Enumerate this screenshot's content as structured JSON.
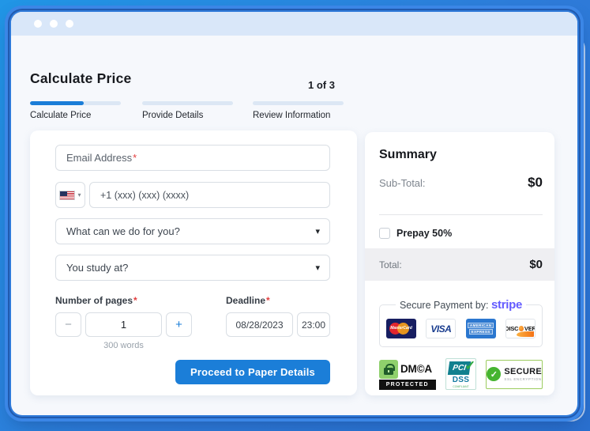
{
  "header": {
    "title": "Calculate Price",
    "step_indicator": "1 of 3"
  },
  "steps": [
    {
      "label": "Calculate Price",
      "progress_percent": 59,
      "active": true
    },
    {
      "label": "Provide Details",
      "progress_percent": 0,
      "active": false
    },
    {
      "label": "Review Information",
      "progress_percent": 0,
      "active": false
    }
  ],
  "icons": {
    "caret": "▾",
    "flag_caret": "▾",
    "check": "✓",
    "copyright": "©"
  },
  "form": {
    "email": {
      "placeholder": "Email Address",
      "required_mark": "*"
    },
    "phone": {
      "country": "US flag",
      "placeholder": "+1 (xxx) (xxx) (xxxx)"
    },
    "service_select": {
      "value": "What can we do for you?"
    },
    "study_select": {
      "value": "You study at?"
    },
    "pages": {
      "label": "Number of pages",
      "required_mark": "*",
      "minus": "−",
      "value": "1",
      "plus": "+",
      "hint": "300 words"
    },
    "deadline": {
      "label": "Deadline",
      "required_mark": "*",
      "date": "08/28/2023",
      "time": "23:00"
    },
    "submit_label": "Proceed to Paper Details"
  },
  "summary": {
    "title": "Summary",
    "subtotal_label": "Sub-Total:",
    "subtotal_value": "$0",
    "prepay_label": "Prepay 50%",
    "prepay_checked": false,
    "total_label": "Total:",
    "total_value": "$0",
    "secure_payment_label": "Secure Payment by:",
    "stripe_logo": "stripe",
    "cards": {
      "mastercard": {
        "text": "MasterCard"
      },
      "visa": {
        "text": "VISA"
      },
      "amex": {
        "line1": "AMERICAN",
        "line2": "EXPRESS"
      },
      "discover": {
        "left": "DISC",
        "right": "VER"
      }
    },
    "badges": {
      "dmca": {
        "title": "DM©A",
        "subtitle": "PROTECTED"
      },
      "pci": {
        "title": "PCI",
        "check": "✓",
        "subtitle": "DSS",
        "note": "COMPLIANT"
      },
      "ssl": {
        "check": "✓",
        "title": "SECURE",
        "subtitle": "SSL ENCRYPTION"
      }
    }
  },
  "colors": {
    "accent_blue": "#1b7ed8",
    "frame_blue": "#2e7bd9",
    "topbar_blue": "#d9e7f9",
    "stripe_purple": "#635bff",
    "required_red": "#e34040",
    "success_green": "#46b430",
    "total_row_gray": "#efeff2"
  }
}
